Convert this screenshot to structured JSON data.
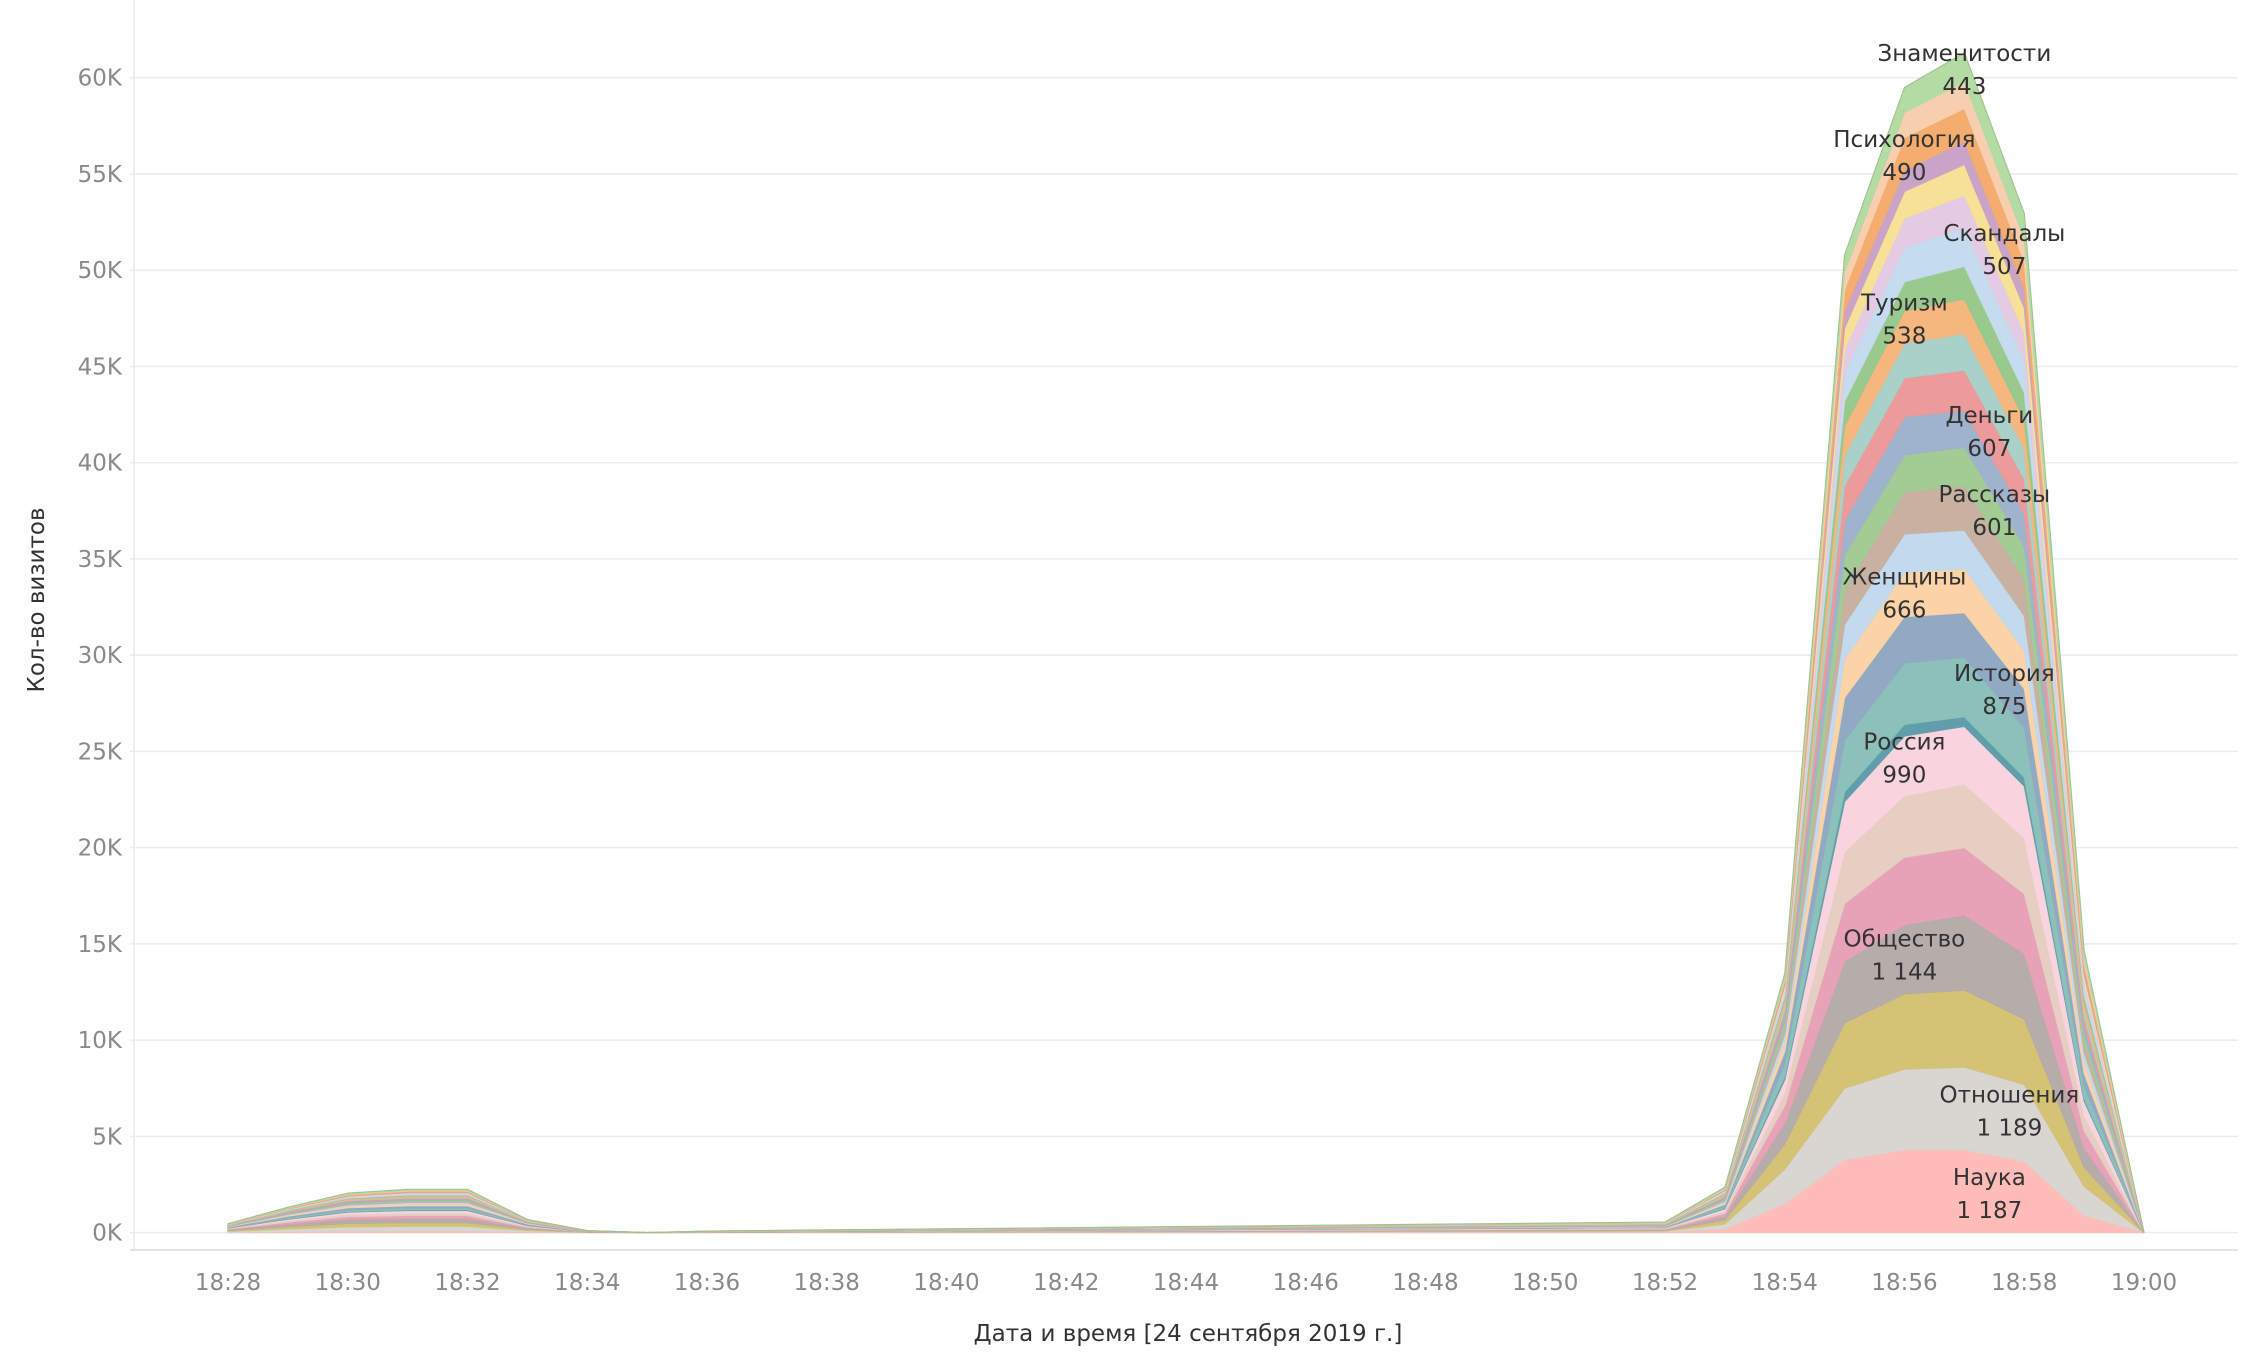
{
  "chart_data": {
    "type": "area",
    "stacked": true,
    "xlabel": "Дата и время [24 сентября 2019 г.]",
    "ylabel": "Кол-во визитов",
    "x": [
      "18:28",
      "18:29",
      "18:30",
      "18:31",
      "18:32",
      "18:33",
      "18:34",
      "18:35",
      "18:36",
      "18:37",
      "18:38",
      "18:39",
      "18:40",
      "18:41",
      "18:42",
      "18:43",
      "18:44",
      "18:45",
      "18:46",
      "18:47",
      "18:48",
      "18:49",
      "18:50",
      "18:51",
      "18:52",
      "18:53",
      "18:54",
      "18:55",
      "18:56",
      "18:57",
      "18:58",
      "18:59",
      "19:00"
    ],
    "x_ticks": [
      "18:28",
      "18:30",
      "18:32",
      "18:34",
      "18:36",
      "18:38",
      "18:40",
      "18:42",
      "18:44",
      "18:46",
      "18:48",
      "18:50",
      "18:52",
      "18:54",
      "18:56",
      "18:58",
      "19:00"
    ],
    "ylim": [
      -800,
      63000
    ],
    "y_ticks": [
      0,
      5000,
      10000,
      15000,
      20000,
      25000,
      30000,
      35000,
      40000,
      45000,
      50000,
      55000,
      60000
    ],
    "y_tick_labels": [
      "0K",
      "5K",
      "10K",
      "15K",
      "20K",
      "25K",
      "30K",
      "35K",
      "40K",
      "45K",
      "50K",
      "55K",
      "60K"
    ],
    "grid": true,
    "legend": "none",
    "series": [
      {
        "name": "Наука",
        "color": "#ffbcb8",
        "values": [
          0,
          40,
          80,
          90,
          90,
          30,
          5,
          0,
          5,
          8,
          10,
          12,
          14,
          16,
          18,
          20,
          22,
          24,
          26,
          28,
          30,
          32,
          34,
          36,
          38,
          200,
          1500,
          3800,
          4300,
          4300,
          3700,
          900,
          0
        ]
      },
      {
        "name": "Отношения",
        "color": "#d9d5d0",
        "values": [
          60,
          150,
          220,
          240,
          240,
          80,
          10,
          0,
          8,
          10,
          12,
          14,
          16,
          18,
          20,
          22,
          24,
          26,
          28,
          30,
          32,
          34,
          36,
          38,
          40,
          250,
          1800,
          3700,
          4200,
          4300,
          4000,
          1500,
          0
        ]
      },
      {
        "name": "",
        "color": "#d4c374",
        "values": [
          50,
          120,
          180,
          190,
          190,
          60,
          10,
          0,
          6,
          8,
          10,
          12,
          14,
          16,
          18,
          20,
          22,
          24,
          26,
          28,
          30,
          32,
          34,
          36,
          38,
          200,
          1300,
          3400,
          3900,
          4000,
          3400,
          1000,
          0
        ]
      },
      {
        "name": "Общество",
        "color": "#b6acaa",
        "values": [
          50,
          140,
          210,
          220,
          220,
          70,
          10,
          0,
          6,
          8,
          10,
          12,
          14,
          16,
          18,
          20,
          22,
          24,
          26,
          28,
          30,
          32,
          34,
          36,
          38,
          200,
          1100,
          3200,
          3600,
          3900,
          3400,
          1000,
          0
        ]
      },
      {
        "name": "",
        "color": "#e8a2b8",
        "values": [
          30,
          90,
          140,
          150,
          150,
          50,
          5,
          0,
          4,
          6,
          8,
          10,
          12,
          14,
          16,
          18,
          20,
          22,
          24,
          26,
          28,
          30,
          32,
          34,
          36,
          150,
          900,
          3000,
          3500,
          3500,
          3100,
          900,
          0
        ]
      },
      {
        "name": "",
        "color": "#e6cec2",
        "values": [
          25,
          80,
          120,
          130,
          130,
          40,
          5,
          0,
          4,
          6,
          8,
          10,
          12,
          14,
          16,
          18,
          20,
          22,
          24,
          26,
          28,
          30,
          32,
          34,
          36,
          120,
          700,
          2700,
          3200,
          3300,
          2900,
          800,
          0
        ]
      },
      {
        "name": "Россия",
        "color": "#f9d4de",
        "values": [
          25,
          80,
          120,
          130,
          130,
          40,
          5,
          0,
          4,
          6,
          8,
          10,
          12,
          14,
          16,
          18,
          20,
          22,
          24,
          26,
          28,
          30,
          32,
          34,
          36,
          120,
          650,
          2600,
          3100,
          3000,
          2700,
          750,
          0
        ]
      },
      {
        "name": "",
        "color": "#5f9eaa",
        "values": [
          10,
          20,
          30,
          35,
          35,
          12,
          2,
          0,
          2,
          2,
          2,
          2,
          2,
          2,
          2,
          2,
          2,
          2,
          2,
          2,
          2,
          2,
          2,
          2,
          2,
          40,
          160,
          500,
          600,
          500,
          450,
          120,
          0
        ]
      },
      {
        "name": "История",
        "color": "#8bc1ba",
        "values": [
          25,
          70,
          100,
          110,
          110,
          40,
          5,
          0,
          4,
          5,
          6,
          7,
          8,
          9,
          10,
          11,
          12,
          13,
          14,
          15,
          16,
          17,
          18,
          19,
          20,
          100,
          700,
          2700,
          3200,
          3100,
          2600,
          700,
          0
        ]
      },
      {
        "name": "",
        "color": "#92a9c4",
        "values": [
          20,
          60,
          90,
          100,
          100,
          30,
          5,
          0,
          3,
          4,
          5,
          6,
          7,
          8,
          9,
          10,
          11,
          12,
          13,
          14,
          15,
          16,
          17,
          18,
          19,
          90,
          600,
          2200,
          2400,
          2300,
          2000,
          600,
          0
        ]
      },
      {
        "name": "Женщины",
        "color": "#fcd3a6",
        "values": [
          20,
          60,
          90,
          100,
          100,
          30,
          5,
          0,
          3,
          4,
          5,
          6,
          7,
          8,
          9,
          10,
          11,
          12,
          13,
          14,
          15,
          16,
          17,
          18,
          19,
          90,
          500,
          2000,
          2300,
          2300,
          2000,
          600,
          0
        ]
      },
      {
        "name": "",
        "color": "#c2d9ee",
        "values": [
          15,
          40,
          60,
          70,
          70,
          20,
          3,
          0,
          2,
          3,
          4,
          5,
          6,
          7,
          8,
          9,
          10,
          11,
          12,
          13,
          14,
          15,
          16,
          17,
          18,
          70,
          400,
          1800,
          2000,
          2000,
          1800,
          500,
          0
        ]
      },
      {
        "name": "Рассказы",
        "color": "#c9b1a2",
        "values": [
          15,
          40,
          60,
          70,
          70,
          20,
          3,
          0,
          2,
          3,
          4,
          5,
          6,
          7,
          8,
          9,
          10,
          11,
          12,
          13,
          14,
          15,
          16,
          17,
          18,
          70,
          350,
          1800,
          2200,
          2300,
          1900,
          500,
          0
        ]
      },
      {
        "name": "",
        "color": "#a3cc95",
        "values": [
          10,
          30,
          50,
          55,
          55,
          15,
          3,
          0,
          2,
          3,
          4,
          5,
          6,
          7,
          8,
          9,
          10,
          11,
          12,
          13,
          14,
          15,
          16,
          17,
          18,
          60,
          300,
          1800,
          1900,
          2000,
          1700,
          450,
          0
        ]
      },
      {
        "name": "Деньги",
        "color": "#9fb4cc",
        "values": [
          10,
          30,
          50,
          55,
          55,
          15,
          3,
          0,
          2,
          3,
          4,
          5,
          6,
          7,
          8,
          9,
          10,
          11,
          12,
          13,
          14,
          15,
          16,
          17,
          18,
          60,
          300,
          1800,
          2000,
          1900,
          1700,
          450,
          0
        ]
      },
      {
        "name": "",
        "color": "#ec9a9a",
        "values": [
          10,
          30,
          50,
          55,
          55,
          15,
          3,
          0,
          2,
          3,
          4,
          5,
          6,
          7,
          8,
          9,
          10,
          11,
          12,
          13,
          14,
          15,
          16,
          17,
          18,
          60,
          300,
          1800,
          2000,
          2100,
          1800,
          450,
          0
        ]
      },
      {
        "name": "",
        "color": "#a9d0c9",
        "values": [
          10,
          30,
          50,
          55,
          55,
          15,
          3,
          0,
          2,
          3,
          4,
          5,
          6,
          7,
          8,
          9,
          10,
          11,
          12,
          13,
          14,
          15,
          16,
          17,
          18,
          60,
          300,
          1600,
          1800,
          1900,
          1600,
          400,
          0
        ]
      },
      {
        "name": "Туризм",
        "color": "#f5b77e",
        "values": [
          10,
          30,
          50,
          55,
          55,
          15,
          3,
          0,
          2,
          3,
          4,
          5,
          6,
          7,
          8,
          9,
          10,
          11,
          12,
          13,
          14,
          15,
          16,
          17,
          18,
          60,
          250,
          1500,
          1700,
          1800,
          1500,
          400,
          0
        ]
      },
      {
        "name": "",
        "color": "#99c98d",
        "values": [
          10,
          25,
          40,
          45,
          45,
          12,
          2,
          0,
          2,
          3,
          4,
          5,
          6,
          7,
          8,
          9,
          10,
          11,
          12,
          13,
          14,
          15,
          16,
          17,
          18,
          50,
          200,
          1300,
          1500,
          1700,
          1400,
          350,
          0
        ]
      },
      {
        "name": "Скандалы",
        "color": "#c5dcef",
        "values": [
          10,
          25,
          40,
          45,
          45,
          12,
          2,
          0,
          2,
          3,
          4,
          5,
          6,
          7,
          8,
          9,
          10,
          11,
          12,
          13,
          14,
          15,
          16,
          17,
          18,
          50,
          200,
          1500,
          1800,
          2000,
          1700,
          400,
          0
        ]
      },
      {
        "name": "",
        "color": "#e4cbe3",
        "values": [
          8,
          20,
          35,
          40,
          40,
          10,
          2,
          0,
          2,
          2,
          3,
          3,
          4,
          4,
          5,
          5,
          6,
          6,
          7,
          7,
          8,
          8,
          9,
          9,
          10,
          40,
          180,
          1200,
          1500,
          1700,
          1400,
          350,
          0
        ]
      },
      {
        "name": "",
        "color": "#f6e196",
        "values": [
          8,
          20,
          35,
          40,
          40,
          10,
          2,
          0,
          2,
          2,
          3,
          3,
          4,
          4,
          5,
          5,
          6,
          6,
          7,
          7,
          8,
          8,
          9,
          9,
          10,
          40,
          150,
          1100,
          1400,
          1600,
          1300,
          300,
          0
        ]
      },
      {
        "name": "Психология",
        "color": "#caa4c8",
        "values": [
          8,
          20,
          35,
          40,
          40,
          10,
          2,
          0,
          2,
          2,
          3,
          3,
          4,
          4,
          5,
          5,
          6,
          6,
          7,
          7,
          8,
          8,
          9,
          9,
          10,
          40,
          150,
          900,
          1100,
          1200,
          1000,
          250,
          0
        ]
      },
      {
        "name": "",
        "color": "#f4ad6f",
        "values": [
          8,
          20,
          35,
          40,
          40,
          10,
          2,
          0,
          2,
          2,
          3,
          3,
          4,
          4,
          5,
          5,
          6,
          6,
          7,
          7,
          8,
          8,
          9,
          9,
          10,
          40,
          150,
          1100,
          1700,
          1700,
          1400,
          350,
          0
        ]
      },
      {
        "name": "",
        "color": "#f8cfae",
        "values": [
          8,
          20,
          35,
          40,
          40,
          10,
          2,
          0,
          2,
          2,
          3,
          3,
          4,
          4,
          5,
          5,
          6,
          6,
          7,
          7,
          8,
          8,
          9,
          9,
          10,
          40,
          130,
          900,
          1300,
          1400,
          1200,
          300,
          0
        ]
      },
      {
        "name": "Знаменитости",
        "color": "#b3dba3",
        "values": [
          10,
          30,
          45,
          50,
          50,
          12,
          2,
          0,
          2,
          3,
          4,
          5,
          6,
          7,
          8,
          9,
          10,
          11,
          12,
          13,
          14,
          15,
          16,
          17,
          18,
          60,
          200,
          900,
          1300,
          1500,
          1300,
          350,
          0
        ]
      }
    ],
    "labels": [
      {
        "series": "Наука",
        "text": "Наука",
        "value": "1 187"
      },
      {
        "series": "Отношения",
        "text": "Отношения",
        "value": "1 189"
      },
      {
        "series": "Общество",
        "text": "Общество",
        "value": "1 144"
      },
      {
        "series": "Россия",
        "text": "Россия",
        "value": "990"
      },
      {
        "series": "История",
        "text": "История",
        "value": "875"
      },
      {
        "series": "Женщины",
        "text": "Женщины",
        "value": "666"
      },
      {
        "series": "Рассказы",
        "text": "Рассказы",
        "value": "601"
      },
      {
        "series": "Деньги",
        "text": "Деньги",
        "value": "607"
      },
      {
        "series": "Туризм",
        "text": "Туризм",
        "value": "538"
      },
      {
        "series": "Скандалы",
        "text": "Скандалы",
        "value": "507"
      },
      {
        "series": "Психология",
        "text": "Психология",
        "value": "490"
      },
      {
        "series": "Знаменитости",
        "text": "Знаменитости",
        "value": "443"
      }
    ]
  }
}
